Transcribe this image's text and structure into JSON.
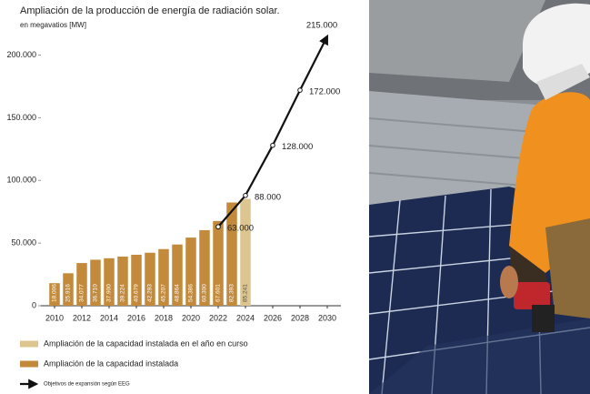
{
  "chart_data": {
    "type": "bar",
    "title": "Ampliación de la producción de energía de radiación solar.",
    "y_label": "en megavatios [MW]",
    "x": [
      2010,
      2011,
      2012,
      2013,
      2014,
      2015,
      2016,
      2017,
      2018,
      2019,
      2020,
      2021,
      2022,
      2023,
      2024
    ],
    "xlim": [
      2009,
      2031
    ],
    "xticks": [
      2010,
      2012,
      2014,
      2016,
      2018,
      2020,
      2022,
      2024,
      2026,
      2028,
      2030
    ],
    "ylim": [
      0,
      220000
    ],
    "yticks": [
      {
        "value": 0,
        "label": "0"
      },
      {
        "value": 50000,
        "label": "50.000"
      },
      {
        "value": 100000,
        "label": "100.000"
      },
      {
        "value": 150000,
        "label": "150.000"
      },
      {
        "value": 200000,
        "label": "200.000"
      }
    ],
    "series": [
      {
        "name": "Ampliación de la capacidad instalada en el año en curso",
        "type": "bar",
        "color": "#dcc58e",
        "values": [
          null,
          null,
          null,
          null,
          null,
          null,
          null,
          null,
          null,
          null,
          null,
          null,
          null,
          null,
          85241
        ],
        "value_labels": [
          null,
          null,
          null,
          null,
          null,
          null,
          null,
          null,
          null,
          null,
          null,
          null,
          null,
          null,
          "85.241"
        ]
      },
      {
        "name": "Ampliación de la capacidad instalada",
        "type": "bar",
        "color": "#c38a3c",
        "values": [
          18006,
          25916,
          34077,
          36710,
          37900,
          39224,
          40679,
          42293,
          45207,
          48864,
          54386,
          60300,
          67601,
          82393,
          null
        ],
        "value_labels": [
          "18.006",
          "25.916",
          "34.077",
          "36.710",
          "37.900",
          "39.224",
          "40.679",
          "42.293",
          "45.207",
          "48.864",
          "54.386",
          "60.300",
          "67.601",
          "82.393",
          null
        ]
      },
      {
        "name": "Objetivos de expansión según EEG",
        "type": "line",
        "color": "#111111",
        "x": [
          2022,
          2024,
          2026,
          2028,
          2030
        ],
        "values": [
          63000,
          88000,
          128000,
          172000,
          215000
        ],
        "value_labels": [
          "63.000",
          "88.000",
          "128.000",
          "172.000",
          "215.000"
        ]
      }
    ]
  }
}
